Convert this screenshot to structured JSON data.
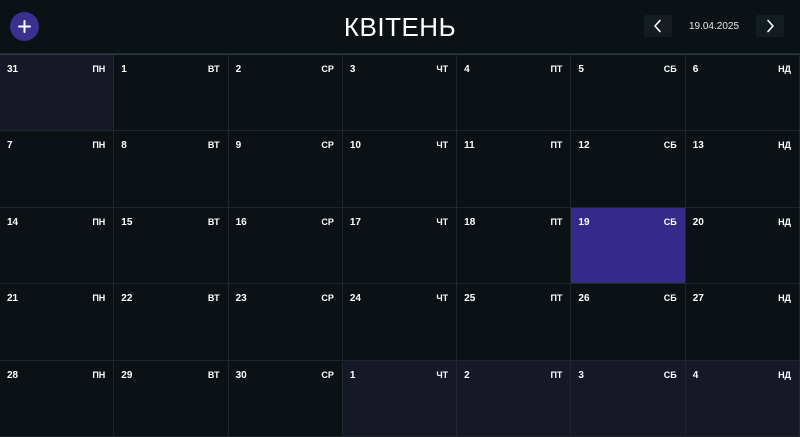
{
  "header": {
    "month_title": "КВІТЕНЬ",
    "date": "19.04.2025",
    "add_icon": "plus-icon",
    "prev_icon": "chevron-left-icon",
    "next_icon": "chevron-right-icon"
  },
  "colors": {
    "background": "#0b1216",
    "accent": "#3b2f8f",
    "today": "#35298a",
    "other_month": "#161828"
  },
  "calendar": {
    "cells": [
      {
        "day": "31",
        "dow": "ПН",
        "state": "other"
      },
      {
        "day": "1",
        "dow": "ВТ",
        "state": "current"
      },
      {
        "day": "2",
        "dow": "СР",
        "state": "current"
      },
      {
        "day": "3",
        "dow": "ЧТ",
        "state": "current"
      },
      {
        "day": "4",
        "dow": "ПТ",
        "state": "current"
      },
      {
        "day": "5",
        "dow": "СБ",
        "state": "current"
      },
      {
        "day": "6",
        "dow": "НД",
        "state": "current"
      },
      {
        "day": "7",
        "dow": "ПН",
        "state": "current"
      },
      {
        "day": "8",
        "dow": "ВТ",
        "state": "current"
      },
      {
        "day": "9",
        "dow": "СР",
        "state": "current"
      },
      {
        "day": "10",
        "dow": "ЧТ",
        "state": "current"
      },
      {
        "day": "11",
        "dow": "ПТ",
        "state": "current"
      },
      {
        "day": "12",
        "dow": "СБ",
        "state": "current"
      },
      {
        "day": "13",
        "dow": "НД",
        "state": "current"
      },
      {
        "day": "14",
        "dow": "ПН",
        "state": "current"
      },
      {
        "day": "15",
        "dow": "ВТ",
        "state": "current"
      },
      {
        "day": "16",
        "dow": "СР",
        "state": "current"
      },
      {
        "day": "17",
        "dow": "ЧТ",
        "state": "current"
      },
      {
        "day": "18",
        "dow": "ПТ",
        "state": "current"
      },
      {
        "day": "19",
        "dow": "СБ",
        "state": "today"
      },
      {
        "day": "20",
        "dow": "НД",
        "state": "current"
      },
      {
        "day": "21",
        "dow": "ПН",
        "state": "current"
      },
      {
        "day": "22",
        "dow": "ВТ",
        "state": "current"
      },
      {
        "day": "23",
        "dow": "СР",
        "state": "current"
      },
      {
        "day": "24",
        "dow": "ЧТ",
        "state": "current"
      },
      {
        "day": "25",
        "dow": "ПТ",
        "state": "current"
      },
      {
        "day": "26",
        "dow": "СБ",
        "state": "current"
      },
      {
        "day": "27",
        "dow": "НД",
        "state": "current"
      },
      {
        "day": "28",
        "dow": "ПН",
        "state": "current"
      },
      {
        "day": "29",
        "dow": "ВТ",
        "state": "current"
      },
      {
        "day": "30",
        "dow": "СР",
        "state": "current"
      },
      {
        "day": "1",
        "dow": "ЧТ",
        "state": "other"
      },
      {
        "day": "2",
        "dow": "ПТ",
        "state": "other"
      },
      {
        "day": "3",
        "dow": "СБ",
        "state": "other"
      },
      {
        "day": "4",
        "dow": "НД",
        "state": "other"
      }
    ]
  }
}
